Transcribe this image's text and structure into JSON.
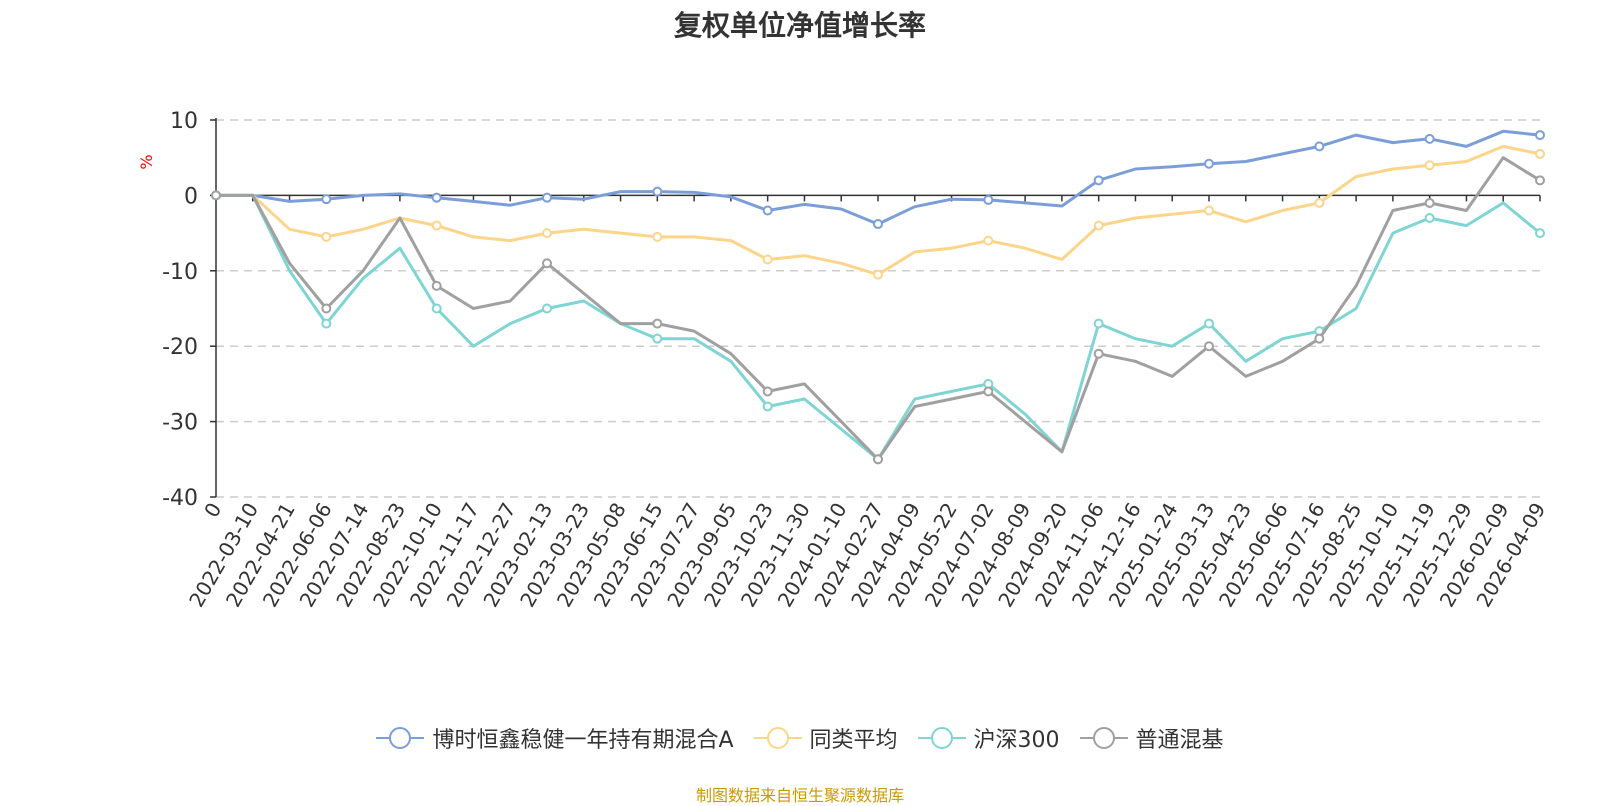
{
  "chart_data": {
    "type": "line",
    "title": "复权单位净值增长率",
    "ylabel": "%",
    "ylim": [
      -40,
      10
    ],
    "y_ticks": [
      10,
      0,
      -10,
      -20,
      -30,
      -40
    ],
    "x_start_label": "0",
    "categories": [
      "2022-03-10",
      "2022-04-21",
      "2022-06-06",
      "2022-07-14",
      "2022-08-23",
      "2022-10-10",
      "2022-11-17",
      "2022-12-27",
      "2023-02-13",
      "2023-03-23",
      "2023-05-08",
      "2023-06-15",
      "2023-07-27",
      "2023-09-05",
      "2023-10-23",
      "2023-11-30",
      "2024-01-10",
      "2024-02-27",
      "2024-04-09",
      "2024-05-22",
      "2024-07-02",
      "2024-08-09",
      "2024-09-20",
      "2024-11-06",
      "2024-12-16",
      "2025-01-24",
      "2025-03-13",
      "2025-04-23",
      "2025-06-06",
      "2025-07-16",
      "2025-08-25",
      "2025-10-10",
      "2025-11-19",
      "2025-12-29",
      "2026-02-09",
      "2026-04-09"
    ],
    "series": [
      {
        "name": "博时恒鑫稳健一年持有期混合A",
        "color": "#7b9ed8",
        "values": [
          0,
          -0.8,
          -0.5,
          0,
          0.2,
          -0.3,
          -0.8,
          -1.3,
          -0.3,
          -0.5,
          0.5,
          0.5,
          0.4,
          -0.2,
          -2.0,
          -1.2,
          -1.8,
          -3.8,
          -1.5,
          -0.5,
          -0.6,
          -1.0,
          -1.4,
          2.0,
          3.5,
          3.8,
          4.2,
          4.5,
          5.5,
          6.5,
          8.0,
          7.0,
          7.5,
          6.5,
          8.5,
          8.0
        ]
      },
      {
        "name": "同类平均",
        "color": "#fcd58a",
        "values": [
          0,
          -4.5,
          -5.5,
          -4.5,
          -3.0,
          -4.0,
          -5.5,
          -6.0,
          -5.0,
          -4.5,
          -5.0,
          -5.5,
          -5.5,
          -6.0,
          -8.5,
          -8.0,
          -9.0,
          -10.5,
          -7.5,
          -7.0,
          -6.0,
          -7.0,
          -8.5,
          -4.0,
          -3.0,
          -2.5,
          -2.0,
          -3.5,
          -2.0,
          -1.0,
          2.5,
          3.5,
          4.0,
          4.5,
          6.5,
          5.5
        ]
      },
      {
        "name": "沪深300",
        "color": "#7fd4d4",
        "values": [
          0,
          -10,
          -17,
          -11,
          -7,
          -15,
          -20,
          -17,
          -15,
          -14,
          -17,
          -19,
          -19,
          -22,
          -28,
          -27,
          -31,
          -35,
          -27,
          -26,
          -25,
          -29,
          -34,
          -17,
          -19,
          -20,
          -17,
          -22,
          -19,
          -18,
          -15,
          -5,
          -3,
          -4,
          -1,
          -5
        ]
      },
      {
        "name": "普通混基",
        "color": "#a0a0a0",
        "values": [
          0,
          -9,
          -15,
          -10,
          -3,
          -12,
          -15,
          -14,
          -9,
          -13,
          -17,
          -17,
          -18,
          -21,
          -26,
          -25,
          -30,
          -35,
          -28,
          -27,
          -26,
          -30,
          -34,
          -21,
          -22,
          -24,
          -20,
          -24,
          -22,
          -19,
          -12,
          -2,
          -1,
          -2,
          5,
          2
        ]
      }
    ]
  },
  "legend": [
    {
      "label": "博时恒鑫稳健一年持有期混合A",
      "color": "#7b9ed8"
    },
    {
      "label": "同类平均",
      "color": "#fcd58a"
    },
    {
      "label": "沪深300",
      "color": "#7fd4d4"
    },
    {
      "label": "普通混基",
      "color": "#a0a0a0"
    }
  ],
  "footer": {
    "source": "制图数据来自恒生聚源数据库"
  }
}
